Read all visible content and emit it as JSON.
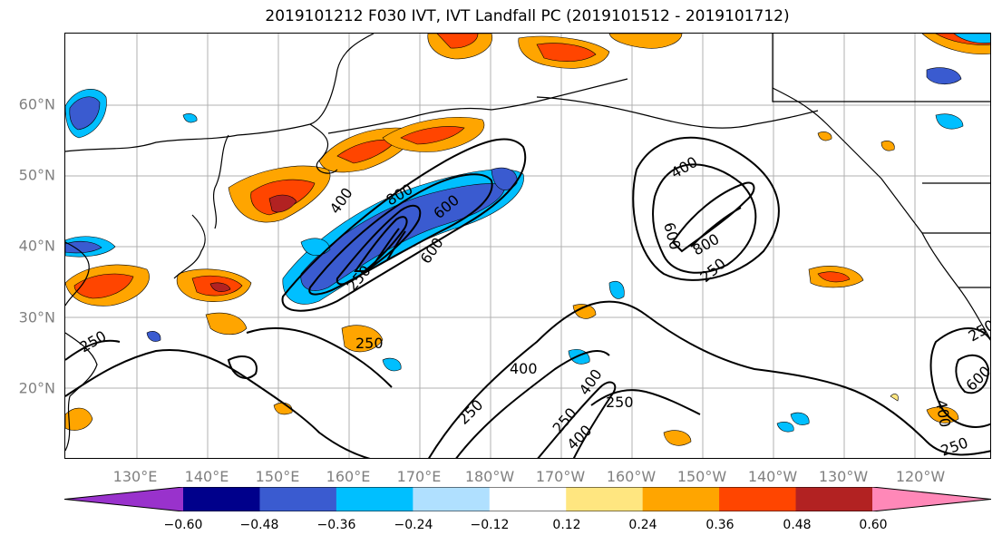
{
  "title": "2019101212 F030 IVT, IVT Landfall PC (2019101512 - 2019101712)",
  "lat_labels": [
    "60°N",
    "50°N",
    "40°N",
    "30°N",
    "20°N"
  ],
  "lon_labels": [
    "130°E",
    "140°E",
    "150°E",
    "160°E",
    "170°E",
    "180°W",
    "170°W",
    "160°W",
    "150°W",
    "140°W",
    "130°W",
    "120°W"
  ],
  "colorbar": {
    "ticks": [
      "−0.60",
      "−0.48",
      "−0.36",
      "−0.24",
      "−0.12",
      "0.12",
      "0.24",
      "0.36",
      "0.48",
      "0.60"
    ],
    "colors": [
      "#9932cc",
      "#00008b",
      "#3a5bd0",
      "#00bfff",
      "#b0e0ff",
      "#ffffff",
      "#ffe680",
      "#ffa500",
      "#ff4500",
      "#b22222",
      "#ff88b8"
    ]
  },
  "contour_labels": [
    "250",
    "400",
    "600",
    "800",
    "250",
    "250",
    "400",
    "600",
    "800",
    "250",
    "250",
    "400",
    "400",
    "250",
    "250",
    "400",
    "400",
    "600",
    "250",
    "250",
    "600"
  ],
  "colors": {
    "contour": "#000000",
    "coast": "#000000",
    "grid": "#a9a9a9",
    "label": "#808080"
  }
}
